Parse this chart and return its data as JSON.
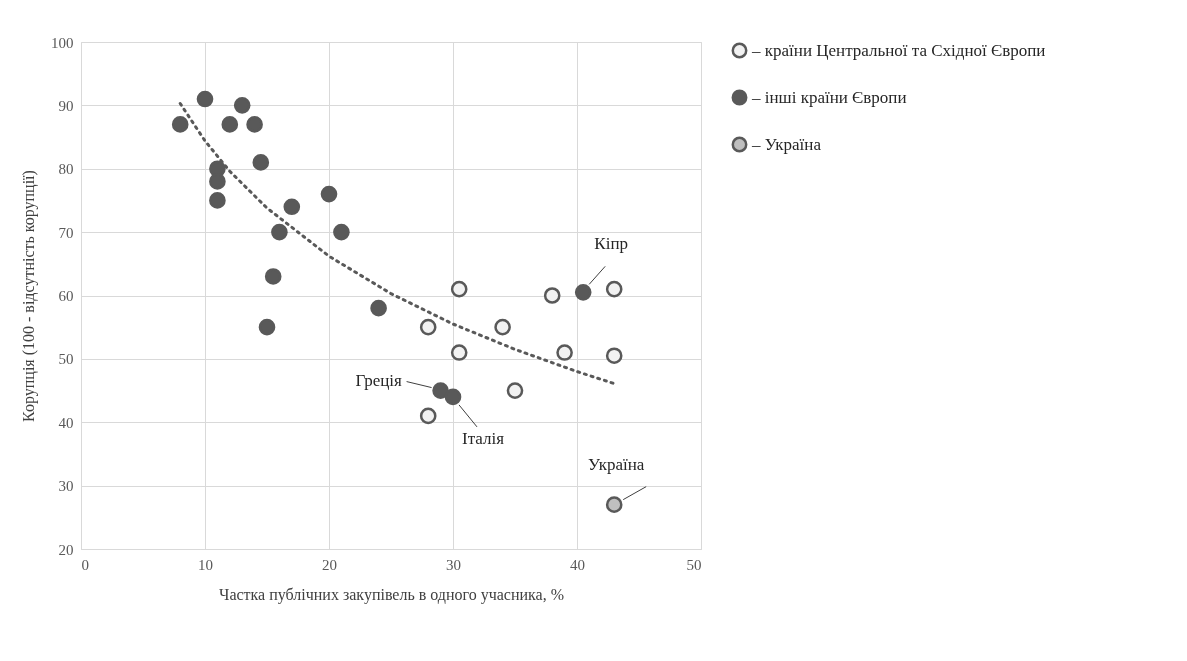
{
  "chart_data": {
    "type": "scatter",
    "xlabel": "Частка публічних закупівель в одного учасника, %",
    "ylabel": "Корупція (100 - відсутність  корупції)",
    "xlim": [
      0,
      50
    ],
    "xticks": [
      0,
      10,
      20,
      30,
      40,
      50
    ],
    "ylim": [
      20,
      100
    ],
    "yticks": [
      20,
      30,
      40,
      50,
      60,
      70,
      80,
      90,
      100
    ],
    "grid": true,
    "legend": "right",
    "marker": "circle",
    "series": [
      {
        "name": "– країни Центральної та Східної Європи",
        "color": "#f2f2f2",
        "x": [
          28,
          28,
          30.5,
          30.5,
          34,
          35,
          38,
          39,
          43,
          43
        ],
        "values": [
          55,
          41,
          61,
          51,
          55,
          45,
          60,
          51,
          61,
          50.5
        ]
      },
      {
        "name": "– інші країни Європи",
        "color": "#595959",
        "x": [
          8,
          10,
          11,
          11,
          11,
          12,
          13,
          14,
          14.5,
          15,
          15.5,
          16,
          17,
          20,
          21,
          24,
          29,
          30,
          40.5
        ],
        "values": [
          87,
          91,
          80,
          78,
          75,
          87,
          90,
          87,
          81,
          55,
          63,
          70,
          74,
          76,
          70,
          58,
          45,
          44,
          60.5
        ]
      },
      {
        "name": "– Україна",
        "color": "#bfbfbf",
        "x": [
          43
        ],
        "values": [
          27
        ]
      },
      {
        "type": "line",
        "marker": "none",
        "line_style": "dotted",
        "color": "#595959",
        "x": [
          8,
          10,
          12,
          15,
          20,
          25,
          30,
          35,
          40,
          43
        ],
        "values": [
          90.3,
          84.4,
          79.6,
          73.8,
          66.2,
          60.3,
          55.5,
          51.5,
          48.0,
          46.1
        ]
      }
    ],
    "annotations": [
      {
        "text": "Кіпр",
        "x": 40.5,
        "y": 60.5
      },
      {
        "text": "Греція",
        "x": 29,
        "y": 45
      },
      {
        "text": "Італія",
        "x": 30,
        "y": 44
      },
      {
        "text": "Україна",
        "x": 43,
        "y": 27
      }
    ]
  }
}
